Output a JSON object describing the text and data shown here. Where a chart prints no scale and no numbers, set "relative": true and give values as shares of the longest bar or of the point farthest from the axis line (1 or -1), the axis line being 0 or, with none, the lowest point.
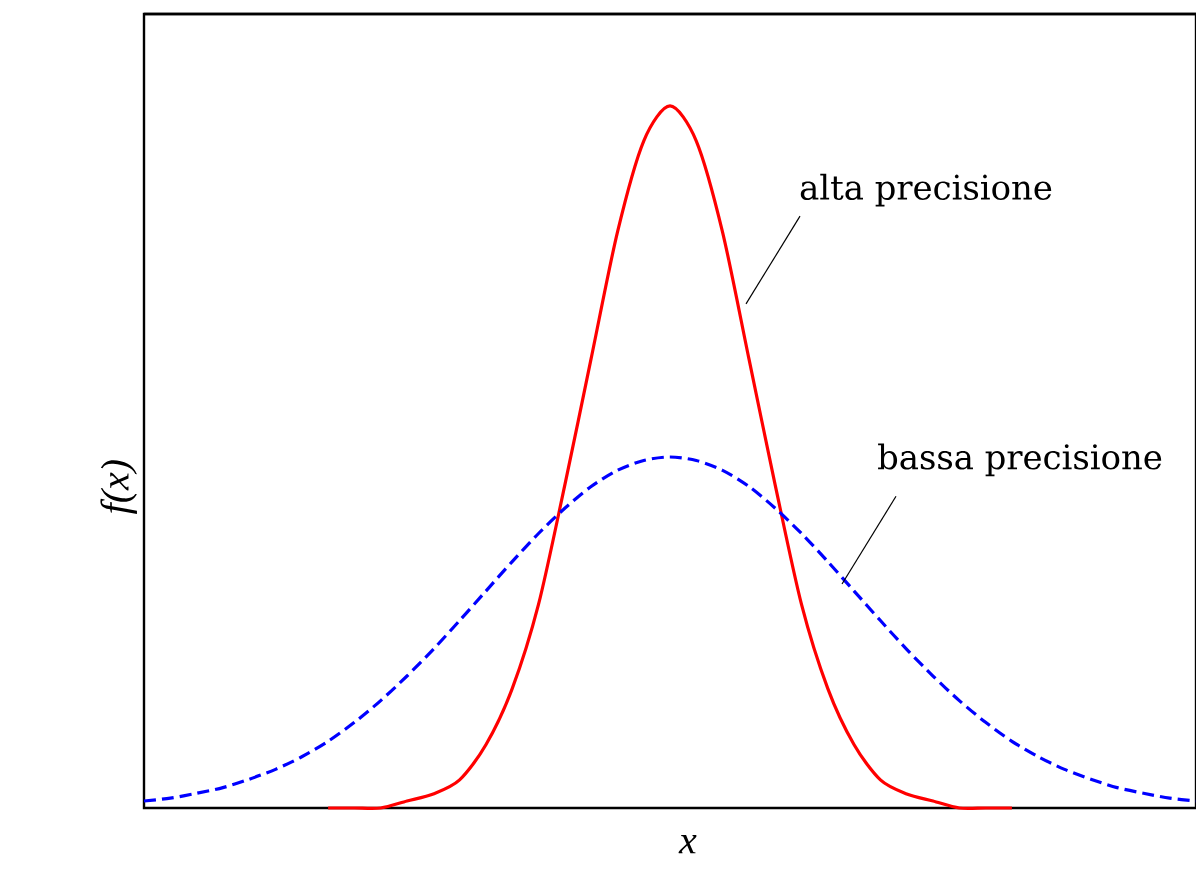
{
  "chart_data": {
    "type": "line",
    "relative": true,
    "xlabel": "x",
    "ylabel": "f(x)",
    "marker": "none",
    "categories": [
      null,
      null,
      null,
      null,
      null,
      null,
      null,
      null,
      null,
      null,
      null,
      null,
      null,
      null,
      null,
      null,
      null,
      null,
      null,
      null,
      null,
      null,
      null,
      null,
      null,
      null,
      null,
      null,
      null,
      null,
      null,
      null,
      null,
      null,
      null,
      null,
      null,
      null,
      null,
      null,
      null
    ],
    "series": [
      {
        "color": "#ff0000",
        "line_style": "solid",
        "values": [
          null,
          null,
          null,
          null,
          null,
          null,
          null,
          0,
          0,
          0,
          0.01,
          0.02,
          0.04,
          0.09,
          0.17,
          0.29,
          0.46,
          0.64,
          0.82,
          0.95,
          1,
          0.95,
          0.82,
          0.64,
          0.46,
          0.29,
          0.17,
          0.09,
          0.04,
          0.02,
          0.01,
          0,
          0,
          0,
          null,
          null,
          null,
          null,
          null,
          null,
          null
        ]
      },
      {
        "color": "#0000ff",
        "line_style": "dashed",
        "values": [
          0.01,
          0.014,
          0.021,
          0.029,
          0.041,
          0.055,
          0.073,
          0.095,
          0.122,
          0.153,
          0.188,
          0.226,
          0.267,
          0.309,
          0.351,
          0.391,
          0.427,
          0.458,
          0.481,
          0.495,
          0.5,
          0.495,
          0.481,
          0.458,
          0.427,
          0.391,
          0.351,
          0.309,
          0.267,
          0.226,
          0.188,
          0.153,
          0.122,
          0.095,
          0.073,
          0.055,
          0.041,
          0.029,
          0.021,
          0.014,
          0.01
        ]
      }
    ],
    "annotations": [
      "alta precisione",
      "bassa precisione"
    ]
  }
}
